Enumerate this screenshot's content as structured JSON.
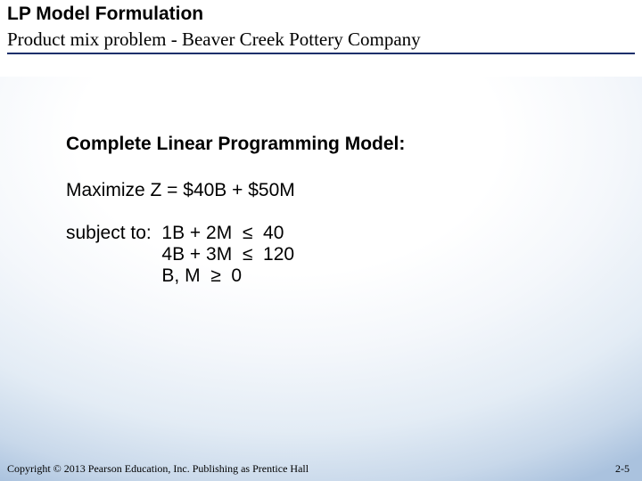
{
  "header": {
    "line1": "LP Model Formulation",
    "line2": "Product mix problem - Beaver Creek Pottery Company",
    "line1_fontsize": 21,
    "line2_fontsize": 21,
    "underline_color": "#1a2f6b"
  },
  "content": {
    "section_title": "Complete Linear Programming Model:",
    "section_title_fontsize": 21,
    "objective": "Maximize   Z  =  $40B + $50M",
    "subject_label": "subject to:  ",
    "constraints": "1B + 2M  ≤  40\n4B + 3M  ≤  120\nB, M  ≥  0",
    "body_fontsize": 21
  },
  "footer": {
    "copyright": "Copyright © 2013 Pearson Education, Inc. Publishing as Prentice Hall",
    "pagenum": "2-5",
    "fontsize": 12
  },
  "colors": {
    "background": "#ffffff",
    "text": "#000000",
    "gradient_inner": "#ffffff",
    "gradient_outer": "#aac2de"
  }
}
